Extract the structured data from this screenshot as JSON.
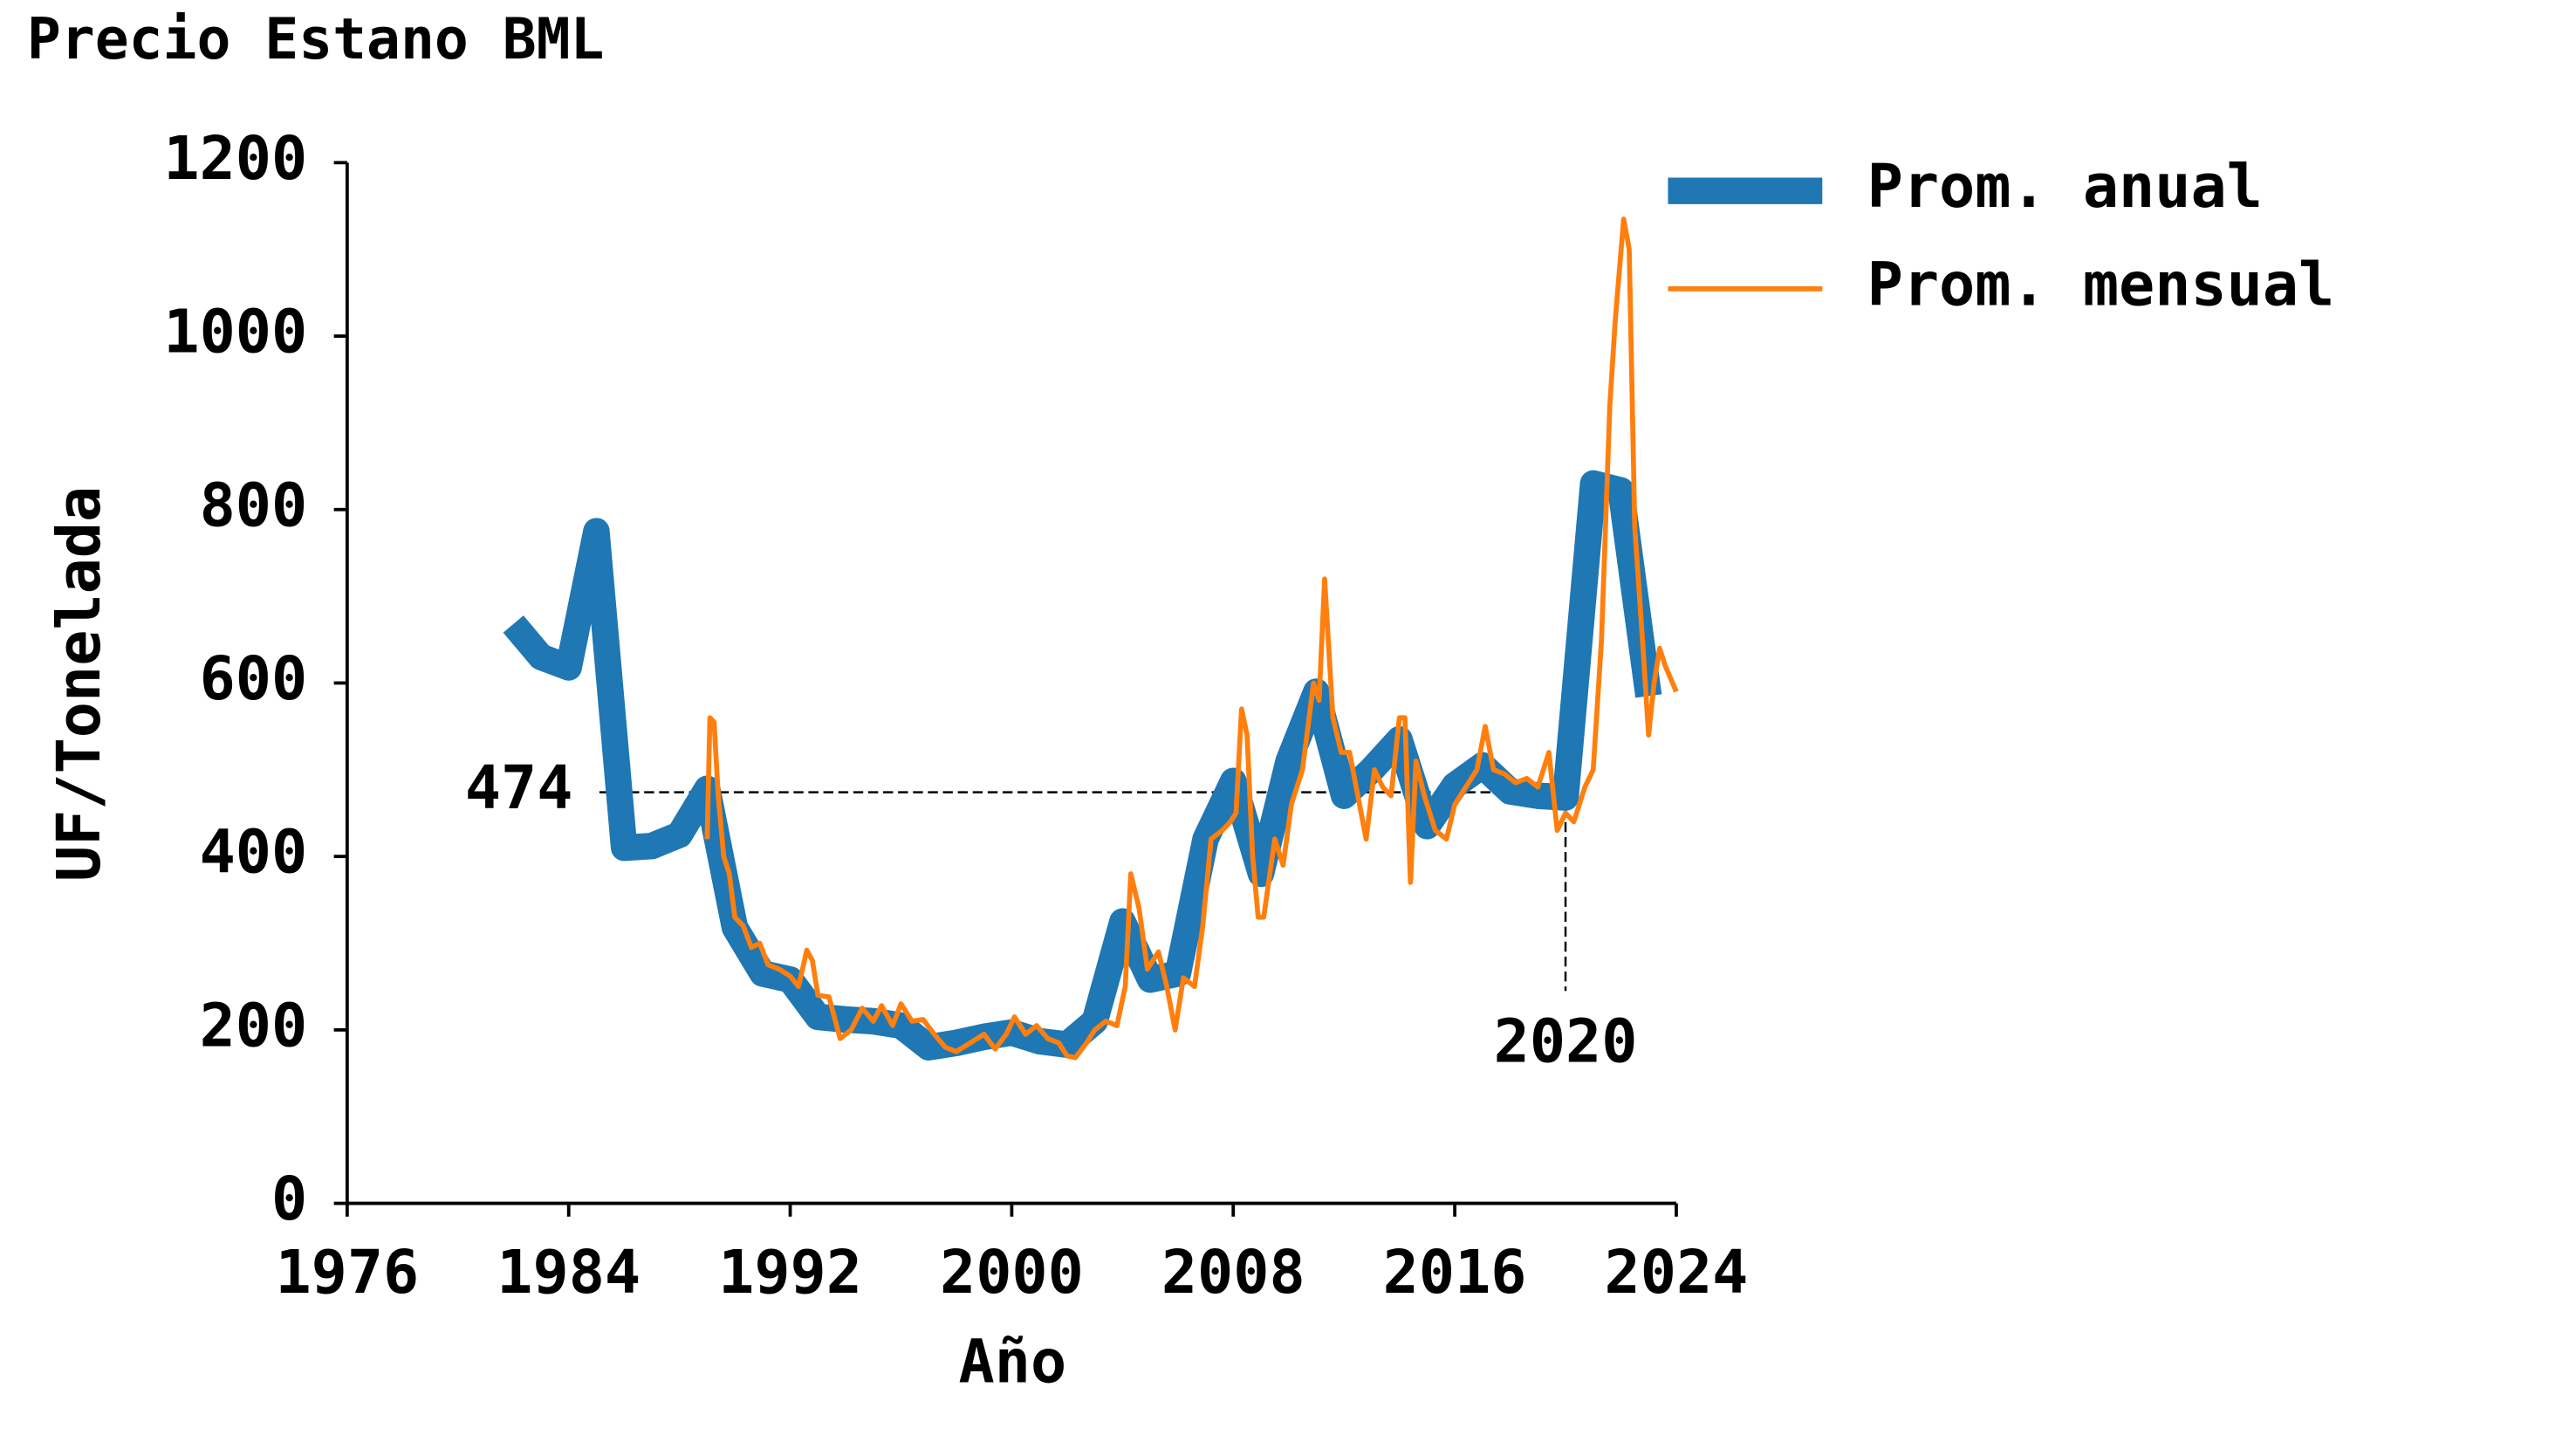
{
  "chart_data": {
    "type": "line",
    "title": "Precio Estano BML",
    "xlabel": "Año",
    "ylabel": "UF/Tonelada",
    "xlim": [
      1976,
      2024
    ],
    "xticks": [
      1976,
      1984,
      1992,
      2000,
      2008,
      2016,
      2024
    ],
    "ylim": [
      0,
      1200
    ],
    "yticks": [
      0,
      200,
      400,
      600,
      800,
      1000,
      1200
    ],
    "legend": "upper right",
    "grid": false,
    "series": [
      {
        "name": "Prom. anual",
        "color": "#1f77b4",
        "x": [
          1982,
          1983,
          1984,
          1985,
          1986,
          1987,
          1988,
          1989,
          1990,
          1991,
          1992,
          1993,
          1994,
          1995,
          1996,
          1997,
          1998,
          1999,
          2000,
          2001,
          2002,
          2003,
          2004,
          2005,
          2006,
          2007,
          2008,
          2009,
          2010,
          2011,
          2012,
          2013,
          2014,
          2015,
          2016,
          2017,
          2018,
          2019,
          2020,
          2021,
          2022,
          2023
        ],
        "values": [
          668,
          630,
          618,
          775,
          410,
          412,
          425,
          478,
          318,
          265,
          258,
          215,
          212,
          210,
          205,
          180,
          185,
          192,
          197,
          187,
          183,
          210,
          325,
          258,
          265,
          420,
          487,
          380,
          510,
          590,
          470,
          500,
          535,
          435,
          482,
          505,
          475,
          470,
          468,
          830,
          822,
          585
        ]
      },
      {
        "name": "Prom. mensual",
        "color": "#ff7f0e",
        "x": [
          1989.0,
          1989.1,
          1989.25,
          1989.4,
          1989.6,
          1989.8,
          1990.0,
          1990.3,
          1990.6,
          1990.9,
          1991.2,
          1991.6,
          1992.0,
          1992.3,
          1992.6,
          1992.8,
          1993.0,
          1993.4,
          1993.8,
          1994.2,
          1994.6,
          1995.0,
          1995.3,
          1995.7,
          1996.0,
          1996.4,
          1996.8,
          1997.2,
          1997.6,
          1998.0,
          1998.5,
          1999.0,
          1999.4,
          1999.8,
          2000.1,
          2000.5,
          2000.9,
          2001.3,
          2001.7,
          2002.0,
          2002.3,
          2002.7,
          2003.0,
          2003.4,
          2003.8,
          2004.1,
          2004.3,
          2004.6,
          2004.9,
          2005.3,
          2005.6,
          2005.9,
          2006.2,
          2006.6,
          2006.9,
          2007.2,
          2007.6,
          2007.9,
          2008.1,
          2008.3,
          2008.5,
          2008.7,
          2008.9,
          2009.1,
          2009.5,
          2009.8,
          2010.1,
          2010.5,
          2010.9,
          2011.1,
          2011.3,
          2011.6,
          2011.9,
          2012.2,
          2012.5,
          2012.8,
          2013.1,
          2013.4,
          2013.7,
          2014.0,
          2014.2,
          2014.4,
          2014.6,
          2014.9,
          2015.3,
          2015.7,
          2016.0,
          2016.4,
          2016.8,
          2017.1,
          2017.4,
          2017.8,
          2018.2,
          2018.6,
          2019.0,
          2019.4,
          2019.7,
          2020.0,
          2020.3,
          2020.7,
          2021.0,
          2021.3,
          2021.6,
          2021.8,
          2022.1,
          2022.3,
          2022.5,
          2022.8,
          2023.0,
          2023.2,
          2023.4,
          2023.6,
          2024.0
        ],
        "values": [
          420,
          560,
          555,
          470,
          400,
          380,
          330,
          320,
          295,
          300,
          275,
          270,
          262,
          250,
          292,
          280,
          240,
          238,
          190,
          200,
          225,
          210,
          228,
          205,
          230,
          210,
          212,
          195,
          180,
          175,
          185,
          195,
          178,
          195,
          215,
          195,
          205,
          190,
          185,
          170,
          168,
          185,
          200,
          210,
          205,
          250,
          380,
          340,
          270,
          290,
          250,
          200,
          260,
          250,
          320,
          420,
          430,
          440,
          450,
          570,
          540,
          400,
          330,
          330,
          420,
          390,
          460,
          500,
          600,
          580,
          720,
          560,
          520,
          520,
          470,
          420,
          500,
          480,
          470,
          560,
          560,
          370,
          510,
          470,
          430,
          420,
          460,
          480,
          500,
          550,
          500,
          495,
          485,
          490,
          480,
          520,
          430,
          450,
          440,
          480,
          500,
          650,
          920,
          1020,
          1135,
          1100,
          780,
          640,
          540,
          600,
          640,
          620,
          590
        ]
      }
    ],
    "annotations": [
      {
        "y": 474
      },
      {
        "x": 2020
      }
    ]
  }
}
